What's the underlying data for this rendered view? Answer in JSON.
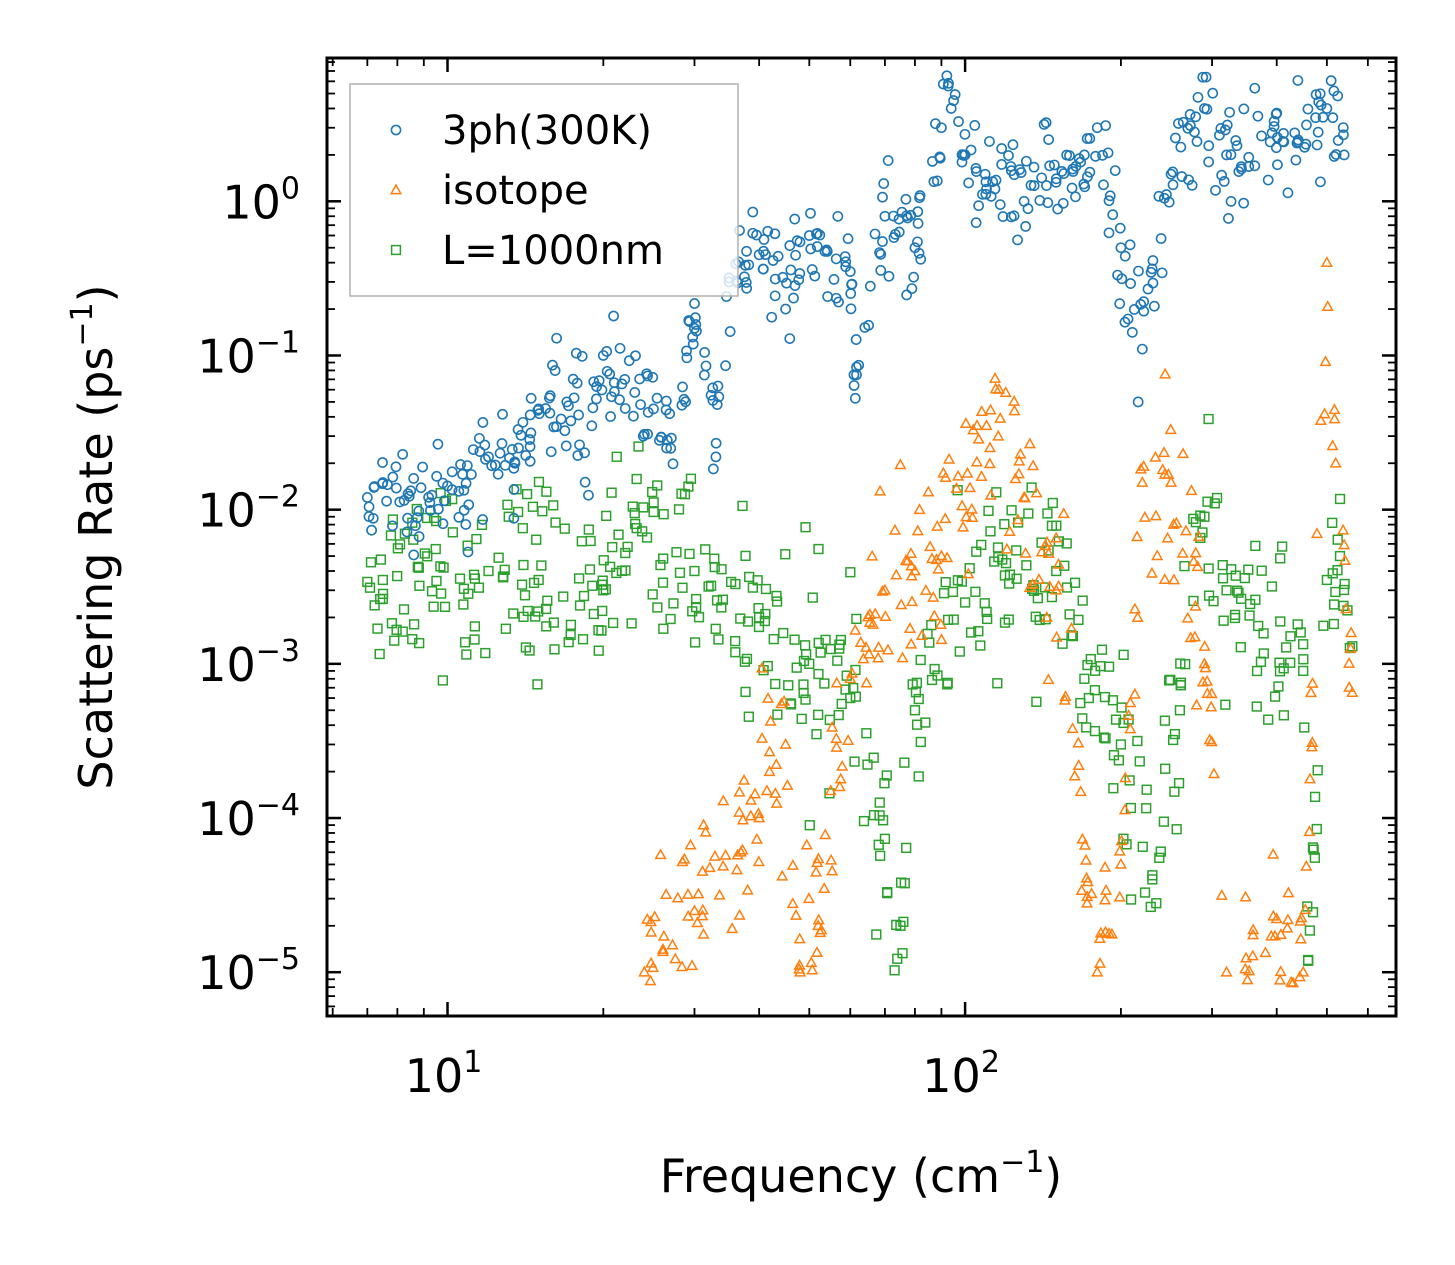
{
  "chart_data": {
    "type": "scatter",
    "title": "",
    "xlabel": "Frequency (cm",
    "xlabel_sup": "−1",
    "xlabel_end": ")",
    "ylabel": "Scattering Rate (ps",
    "ylabel_sup": "−1",
    "ylabel_end": ")",
    "xscale": "log",
    "yscale": "log",
    "xlim": [
      5.85,
      680
    ],
    "ylim": [
      5.2e-06,
      8.5
    ],
    "x_ticks": [
      {
        "value": 10,
        "base": "10",
        "exp": "1"
      },
      {
        "value": 100,
        "base": "10",
        "exp": "2"
      }
    ],
    "y_ticks": [
      {
        "value": 1,
        "base": "10",
        "exp": "0"
      },
      {
        "value": 0.1,
        "base": "10",
        "exp": "−1"
      },
      {
        "value": 0.01,
        "base": "10",
        "exp": "−2"
      },
      {
        "value": 0.001,
        "base": "10",
        "exp": "−3"
      },
      {
        "value": 0.0001,
        "base": "10",
        "exp": "−4"
      },
      {
        "value": 1e-05,
        "base": "10",
        "exp": "−5"
      }
    ],
    "legend_position": "top-left",
    "series": [
      {
        "name": "3ph(300K)",
        "color": "#1f77b4",
        "marker": "circle",
        "sample_points": [
          [
            7.0,
            0.012
          ],
          [
            7.5,
            0.015
          ],
          [
            8.8,
            0.0098
          ],
          [
            12,
            0.022
          ],
          [
            13.5,
            0.02
          ],
          [
            15,
            0.045
          ],
          [
            17,
            0.05
          ],
          [
            19,
            0.035
          ],
          [
            20,
            0.1
          ],
          [
            22,
            0.07
          ],
          [
            25,
            0.045
          ],
          [
            27,
            0.025
          ],
          [
            30,
            0.15
          ],
          [
            33,
            0.022
          ],
          [
            35,
            0.3
          ],
          [
            40,
            0.45
          ],
          [
            45,
            0.2
          ],
          [
            50,
            0.6
          ],
          [
            60,
            0.35
          ],
          [
            61,
            0.075
          ],
          [
            70,
            0.8
          ],
          [
            80,
            0.5
          ],
          [
            90,
            3.0
          ],
          [
            95,
            4.5
          ],
          [
            100,
            2.0
          ],
          [
            110,
            1.2
          ],
          [
            130,
            1.0
          ],
          [
            150,
            1.4
          ],
          [
            170,
            2.0
          ],
          [
            180,
            3.0
          ],
          [
            200,
            0.5
          ],
          [
            220,
            0.11
          ],
          [
            250,
            1.5
          ],
          [
            290,
            4.0
          ],
          [
            320,
            2.0
          ],
          [
            440,
            2.5
          ],
          [
            500,
            4.0
          ],
          [
            540,
            2.0
          ]
        ]
      },
      {
        "name": "isotope",
        "color": "#ff7f0e",
        "marker": "triangle",
        "sample_points": [
          [
            24,
            1e-05
          ],
          [
            30,
            2.5e-05
          ],
          [
            40,
            0.0001
          ],
          [
            45,
            0.0003
          ],
          [
            48,
            1e-05
          ],
          [
            52,
            2e-05
          ],
          [
            55,
            0.00015
          ],
          [
            60,
            0.0008
          ],
          [
            70,
            0.003
          ],
          [
            80,
            0.004
          ],
          [
            90,
            0.005
          ],
          [
            110,
            0.035
          ],
          [
            130,
            0.012
          ],
          [
            150,
            0.003
          ],
          [
            180,
            1e-05
          ],
          [
            200,
            5e-05
          ],
          [
            220,
            0.015
          ],
          [
            250,
            0.015
          ],
          [
            290,
            0.001
          ],
          [
            320,
            1e-05
          ],
          [
            450,
            1e-05
          ],
          [
            500,
            0.4
          ],
          [
            520,
            0.02
          ],
          [
            560,
            0.00065
          ]
        ]
      },
      {
        "name": "L=1000nm",
        "color": "#2ca02c",
        "marker": "square",
        "sample_points": [
          [
            7.0,
            0.0034
          ],
          [
            7.5,
            0.0035
          ],
          [
            8.8,
            0.0042
          ],
          [
            12,
            0.004
          ],
          [
            15,
            0.0035
          ],
          [
            20,
            0.003
          ],
          [
            23,
            0.0095
          ],
          [
            30,
            0.004
          ],
          [
            40,
            0.002
          ],
          [
            50,
            0.001
          ],
          [
            60,
            0.0006
          ],
          [
            75,
            2e-05
          ],
          [
            80,
            0.0005
          ],
          [
            100,
            0.0025
          ],
          [
            120,
            0.0045
          ],
          [
            150,
            0.004
          ],
          [
            170,
            0.0008
          ],
          [
            200,
            0.0003
          ],
          [
            230,
            4e-05
          ],
          [
            260,
            0.0005
          ],
          [
            290,
            0.009
          ],
          [
            320,
            0.003
          ],
          [
            450,
            0.0009
          ],
          [
            460,
            1.2e-05
          ],
          [
            500,
            0.0035
          ],
          [
            530,
            0.005
          ],
          [
            560,
            0.0013
          ]
        ]
      }
    ]
  }
}
